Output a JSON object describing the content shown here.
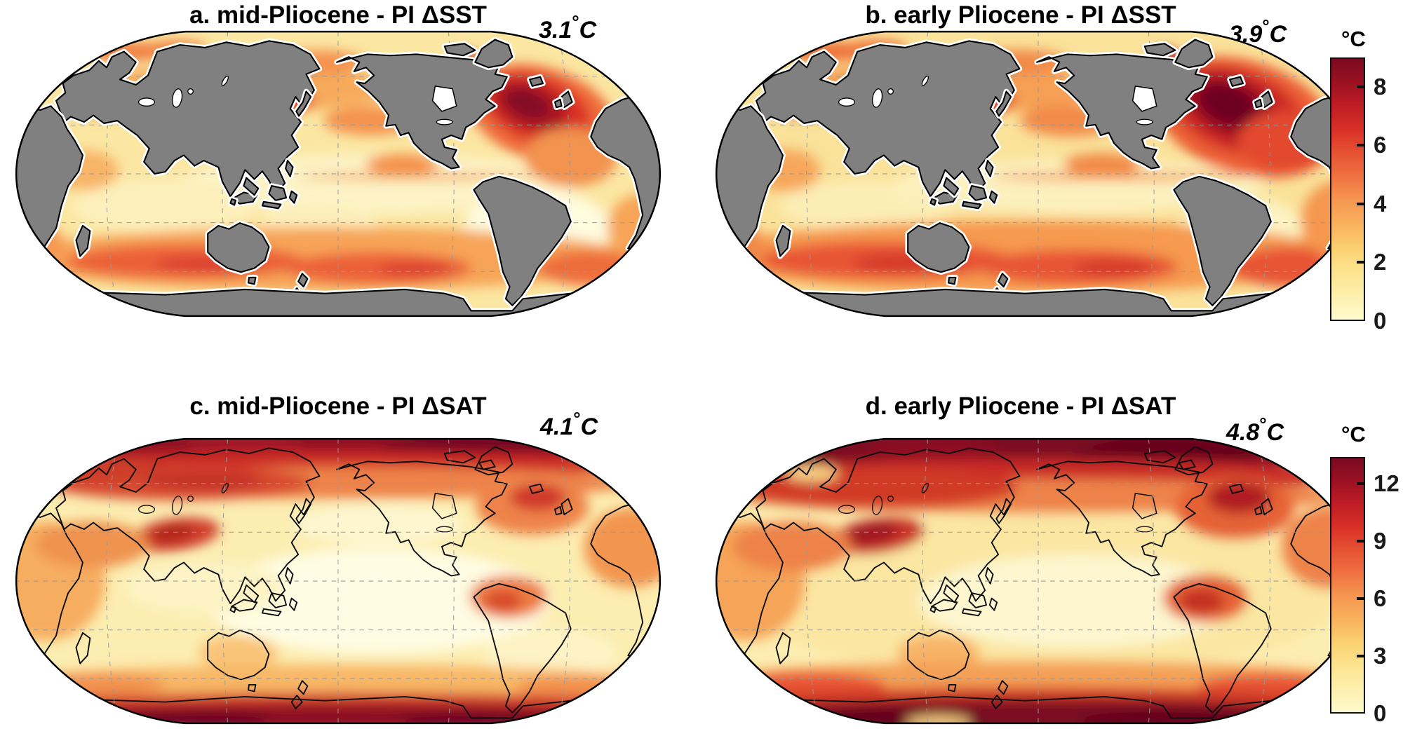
{
  "figure": {
    "background_color": "#ffffff",
    "land_color_sst_panels": "#808080",
    "coastline_color": "#000000",
    "graticule_color": "#999999"
  },
  "panels": [
    {
      "id": "a",
      "title": "a. mid-Pliocene - PI ΔSST",
      "mean_value": "3.1",
      "degree_symbol": "°",
      "unit_letter": "C"
    },
    {
      "id": "b",
      "title": "b. early Pliocene - PI ΔSST",
      "mean_value": "3.9",
      "degree_symbol": "°",
      "unit_letter": "C"
    },
    {
      "id": "c",
      "title": "c. mid-Pliocene - PI ΔSAT",
      "mean_value": "4.1",
      "degree_symbol": "°",
      "unit_letter": "C"
    },
    {
      "id": "d",
      "title": "d. early Pliocene - PI ΔSAT",
      "mean_value": "4.8",
      "degree_symbol": "°",
      "unit_letter": "C"
    }
  ],
  "colorbars": [
    {
      "id": "sst",
      "unit_label": "°C",
      "ticks": [
        8,
        6,
        4,
        2,
        0
      ],
      "range_min": 0,
      "range_max": 9,
      "applies_to": "panels a and b"
    },
    {
      "id": "sat",
      "unit_label": "°C",
      "ticks": [
        12,
        9,
        6,
        3,
        0
      ],
      "range_min": 0,
      "range_max": 13.4,
      "applies_to": "panels c and d"
    }
  ],
  "colormap_stops": [
    "#fffbce",
    "#fdf0ae",
    "#fce490",
    "#fbd171",
    "#f9b25d",
    "#f59751",
    "#f07342",
    "#e65333",
    "#d93127",
    "#c01d25",
    "#9c1122",
    "#7a0a21"
  ],
  "chart_data": {
    "type": "heatmap",
    "title": "Pliocene minus pre-industrial temperature anomalies",
    "projection": "Robinson-style global maps, Pacific-centered",
    "panels": [
      {
        "id": "a",
        "title": "a. mid-Pliocene - PI ΔSST",
        "variable": "sea surface temperature anomaly",
        "global_mean_c": 3.1,
        "colorbar_range_c": [
          0,
          9
        ],
        "colorbar_ticks_c": [
          0,
          2,
          4,
          6,
          8
        ],
        "land_style": "gray filled continents with white coastal halo",
        "notable_features": [
          "northwest Atlantic hotspot exceeding 8 C",
          "Southern Ocean band around 4-6 C",
          "Kuroshio extension warm patch about 6 C",
          "weak 1-2 C warming in tropical and southeast Pacific"
        ]
      },
      {
        "id": "b",
        "title": "b. early Pliocene - PI ΔSST",
        "variable": "sea surface temperature anomaly",
        "global_mean_c": 3.9,
        "colorbar_range_c": [
          0,
          9
        ],
        "colorbar_ticks_c": [
          0,
          2,
          4,
          6,
          8
        ],
        "land_style": "gray filled continents with white coastal halo",
        "notable_features": [
          "larger and darker North Atlantic hotspot above 8 C",
          "generally 0.5-1 C warmer ocean field than panel a",
          "strong Southern Ocean warming band 4-6 C"
        ]
      },
      {
        "id": "c",
        "title": "c. mid-Pliocene - PI ΔSAT",
        "variable": "surface air temperature anomaly",
        "global_mean_c": 4.1,
        "colorbar_range_c": [
          0,
          13.4
        ],
        "colorbar_ticks_c": [
          0,
          3,
          6,
          9,
          12
        ],
        "land_style": "black coastlines only, field covers land and ocean",
        "notable_features": [
          "polar amplification with more than 12 C over Arctic and around Antarctica",
          "red band over Siberia and central Asia / Tibet",
          "Amazon and Andes warm patch 6-9 C",
          "pale 1-3 C tropical Pacific"
        ]
      },
      {
        "id": "d",
        "title": "d. early Pliocene - PI ΔSAT",
        "variable": "surface air temperature anomaly",
        "global_mean_c": 4.8,
        "colorbar_range_c": [
          0,
          13.4
        ],
        "colorbar_ticks_c": [
          0,
          3,
          6,
          9,
          12
        ],
        "land_style": "black coastlines only, field covers land and ocean",
        "notable_features": [
          "thicker dark-red Arctic band than panel c",
          "continuous dark Antarctic coastal band above 12 C",
          "stronger warming over continents and North Atlantic"
        ]
      }
    ],
    "legend_position": "two vertical colorbars on right side, one per row"
  }
}
